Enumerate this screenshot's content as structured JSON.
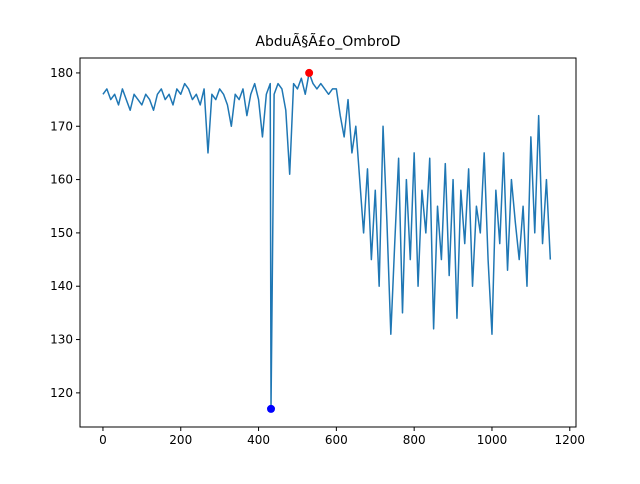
{
  "chart_data": {
    "type": "line",
    "title": "AbduÃ§Ã£o_OmbroD",
    "x": [
      0,
      10,
      20,
      30,
      40,
      50,
      60,
      70,
      80,
      90,
      100,
      110,
      120,
      130,
      140,
      150,
      160,
      170,
      180,
      190,
      200,
      210,
      220,
      230,
      240,
      250,
      260,
      270,
      280,
      290,
      300,
      310,
      320,
      330,
      340,
      350,
      360,
      370,
      380,
      390,
      400,
      410,
      420,
      430,
      432,
      440,
      450,
      460,
      470,
      480,
      490,
      500,
      510,
      520,
      530,
      540,
      550,
      560,
      570,
      580,
      590,
      600,
      610,
      620,
      630,
      640,
      650,
      660,
      670,
      680,
      690,
      700,
      710,
      720,
      730,
      740,
      750,
      760,
      770,
      780,
      790,
      800,
      810,
      820,
      830,
      840,
      850,
      860,
      870,
      880,
      890,
      900,
      910,
      920,
      930,
      940,
      950,
      960,
      970,
      980,
      990,
      1000,
      1010,
      1020,
      1030,
      1040,
      1050,
      1060,
      1070,
      1080,
      1090,
      1100,
      1110,
      1120,
      1130,
      1140,
      1150
    ],
    "series": [
      {
        "color": "#1f77b4",
        "values": [
          176,
          177,
          175,
          176,
          174,
          177,
          175,
          173,
          176,
          175,
          174,
          176,
          175,
          173,
          176,
          177,
          175,
          176,
          174,
          177,
          176,
          178,
          177,
          175,
          176,
          174,
          177,
          165,
          176,
          175,
          177,
          176,
          174,
          170,
          176,
          175,
          177,
          172,
          176,
          178,
          175,
          168,
          176,
          178,
          117,
          176,
          178,
          177,
          173,
          161,
          178,
          177,
          179,
          176,
          180,
          178,
          177,
          178,
          177,
          176,
          177,
          177,
          172,
          168,
          175,
          165,
          170,
          160,
          150,
          162,
          145,
          158,
          140,
          170,
          152,
          131,
          148,
          164,
          135,
          160,
          145,
          165,
          140,
          158,
          150,
          164,
          132,
          155,
          145,
          163,
          142,
          160,
          134,
          158,
          148,
          162,
          140,
          155,
          150,
          165,
          145,
          131,
          158,
          148,
          165,
          143,
          160,
          152,
          145,
          155,
          140,
          168,
          150,
          172,
          148,
          160,
          145
        ]
      }
    ],
    "points": [
      {
        "x": 530,
        "y": 180,
        "color": "#ff0000"
      },
      {
        "x": 432,
        "y": 117,
        "color": "#0000ff"
      }
    ],
    "xlim": [
      -59,
      1216
    ],
    "ylim": [
      113.6,
      182.8
    ],
    "xticks": [
      0,
      200,
      400,
      600,
      800,
      1000,
      1200
    ],
    "yticks": [
      120,
      130,
      140,
      150,
      160,
      170,
      180
    ]
  }
}
